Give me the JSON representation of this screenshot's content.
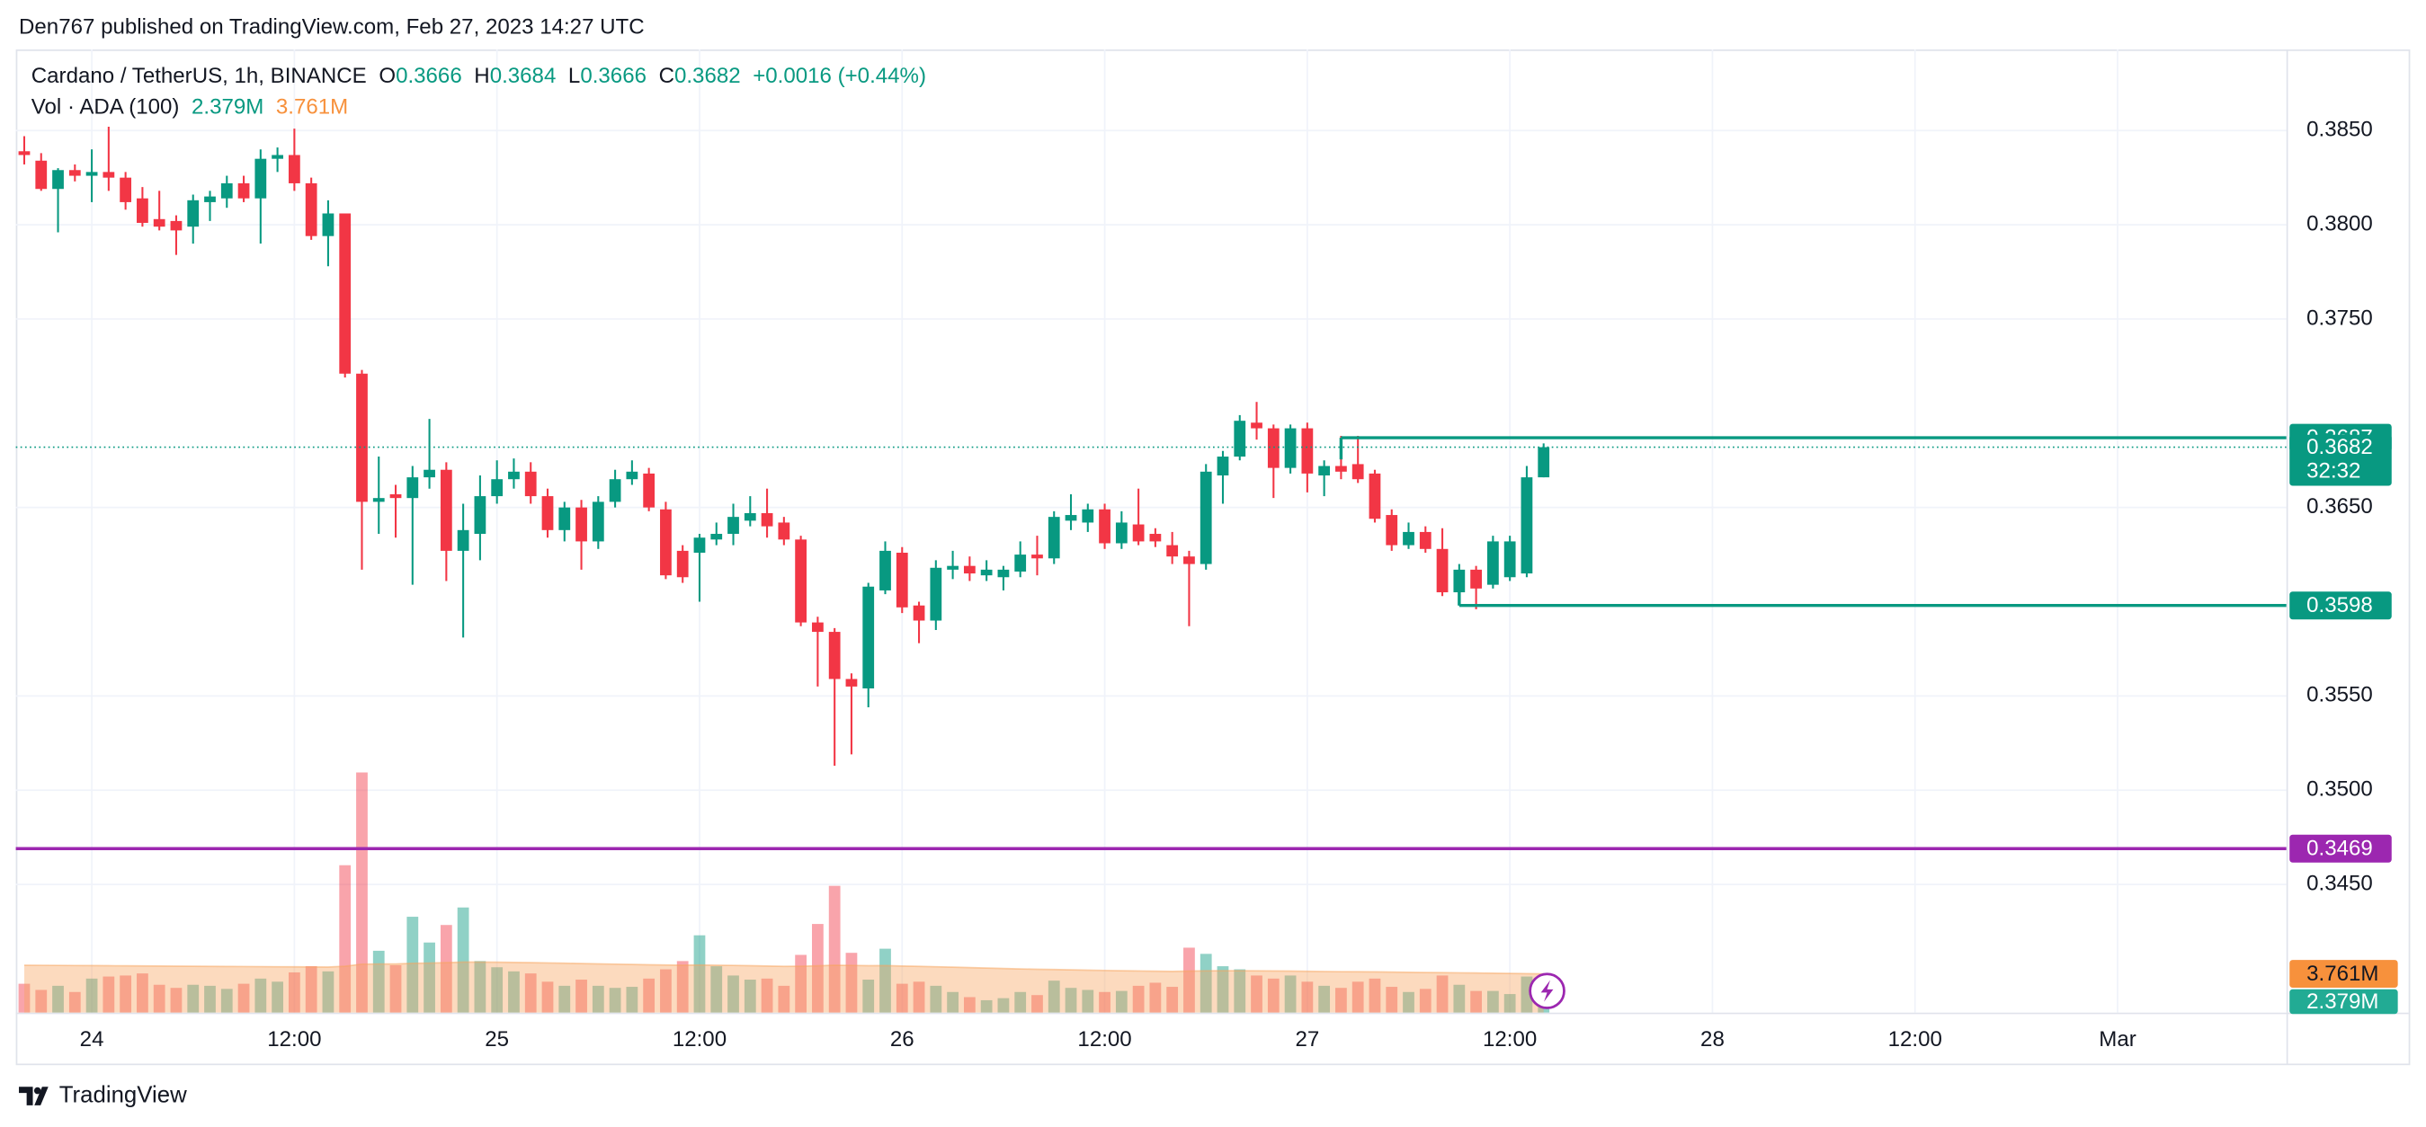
{
  "header": {
    "published": "Den767 published on TradingView.com, Feb 27, 2023 14:27 UTC",
    "brand": "TradingView"
  },
  "chart_data": {
    "type": "candlestick",
    "title": "Cardano / TetherUS, 1h, BINANCE",
    "ohlc_keys": [
      "O",
      "H",
      "L",
      "C"
    ],
    "change": "+0.0016 (+0.44%)",
    "volume_title": "Vol · ADA (100)",
    "volume_label": "2.379M",
    "volume_ma_label": "3.761M",
    "countdown": "32:32",
    "up_color": "#089981",
    "down_color": "#f23645",
    "volume_ma_color": "#f7a35c",
    "grid": true,
    "open": [
      0.3839,
      0.3834,
      0.3819,
      0.3829,
      0.3826,
      0.3828,
      0.3825,
      0.3814,
      0.3803,
      0.3802,
      0.3799,
      0.3812,
      0.3814,
      0.3822,
      0.3814,
      0.3835,
      0.3837,
      0.3822,
      0.3794,
      0.3806,
      0.3721,
      0.3653,
      0.3657,
      0.3655,
      0.3666,
      0.367,
      0.3627,
      0.3636,
      0.3656,
      0.3665,
      0.3669,
      0.3656,
      0.3638,
      0.365,
      0.3632,
      0.3653,
      0.3665,
      0.3668,
      0.3649,
      0.3627,
      0.3626,
      0.3633,
      0.3636,
      0.3643,
      0.3647,
      0.3642,
      0.3633,
      0.3589,
      0.3584,
      0.3559,
      0.3554,
      0.3606,
      0.3626,
      0.3598,
      0.359,
      0.3617,
      0.3619,
      0.3614,
      0.3613,
      0.3616,
      0.3625,
      0.3623,
      0.3643,
      0.3642,
      0.3649,
      0.3631,
      0.3641,
      0.3636,
      0.363,
      0.3624,
      0.362,
      0.3667,
      0.3677,
      0.3695,
      0.3692,
      0.3671,
      0.3692,
      0.3667,
      0.3672,
      0.3673,
      0.3668,
      0.3646,
      0.363,
      0.3637,
      0.3628,
      0.3605,
      0.3617,
      0.3609,
      0.3613,
      0.3615,
      0.3666
    ],
    "high": [
      0.3847,
      0.3838,
      0.383,
      0.3832,
      0.384,
      0.3852,
      0.3828,
      0.382,
      0.3818,
      0.3805,
      0.3816,
      0.3818,
      0.3826,
      0.3826,
      0.384,
      0.3841,
      0.3851,
      0.3825,
      0.3813,
      0.3806,
      0.3723,
      0.3677,
      0.3662,
      0.3672,
      0.3697,
      0.3674,
      0.3652,
      0.3667,
      0.3675,
      0.3676,
      0.3674,
      0.366,
      0.3653,
      0.3654,
      0.3656,
      0.367,
      0.3675,
      0.3671,
      0.3653,
      0.363,
      0.3636,
      0.3642,
      0.3652,
      0.3656,
      0.366,
      0.3645,
      0.3635,
      0.3592,
      0.3586,
      0.3562,
      0.361,
      0.3632,
      0.3629,
      0.36,
      0.3622,
      0.3627,
      0.3624,
      0.3622,
      0.3619,
      0.3632,
      0.3635,
      0.3648,
      0.3657,
      0.3652,
      0.3652,
      0.3648,
      0.366,
      0.3639,
      0.3637,
      0.3627,
      0.3673,
      0.368,
      0.3699,
      0.3706,
      0.3694,
      0.3694,
      0.3695,
      0.3675,
      0.3688,
      0.3688,
      0.367,
      0.3649,
      0.3642,
      0.364,
      0.3639,
      0.362,
      0.3619,
      0.3635,
      0.3635,
      0.3672,
      0.3684
    ],
    "low": [
      0.3832,
      0.3818,
      0.3796,
      0.3823,
      0.3812,
      0.3818,
      0.3808,
      0.3799,
      0.3797,
      0.3784,
      0.379,
      0.3802,
      0.3809,
      0.3812,
      0.379,
      0.3828,
      0.3818,
      0.3792,
      0.3778,
      0.3719,
      0.3617,
      0.3636,
      0.3634,
      0.3609,
      0.366,
      0.3611,
      0.3581,
      0.3622,
      0.3652,
      0.366,
      0.3652,
      0.3634,
      0.3632,
      0.3617,
      0.3628,
      0.365,
      0.3662,
      0.3648,
      0.3612,
      0.361,
      0.36,
      0.363,
      0.363,
      0.364,
      0.3634,
      0.363,
      0.3587,
      0.3555,
      0.3513,
      0.3519,
      0.3544,
      0.3604,
      0.3594,
      0.3578,
      0.3585,
      0.3612,
      0.3611,
      0.3611,
      0.3606,
      0.3613,
      0.3614,
      0.362,
      0.3638,
      0.3637,
      0.3628,
      0.3628,
      0.363,
      0.3629,
      0.362,
      0.3587,
      0.3617,
      0.3652,
      0.3675,
      0.3686,
      0.3655,
      0.3668,
      0.3658,
      0.3656,
      0.3665,
      0.3663,
      0.3642,
      0.3627,
      0.3628,
      0.3626,
      0.3603,
      0.3598,
      0.3596,
      0.3607,
      0.3611,
      0.3613,
      0.3666
    ],
    "close": [
      0.3837,
      0.3819,
      0.3829,
      0.3826,
      0.3828,
      0.3825,
      0.3812,
      0.3801,
      0.3799,
      0.3797,
      0.3813,
      0.3815,
      0.3822,
      0.3814,
      0.3835,
      0.3837,
      0.3822,
      0.3794,
      0.3806,
      0.3721,
      0.3653,
      0.3655,
      0.3655,
      0.3666,
      0.367,
      0.3627,
      0.3638,
      0.3656,
      0.3665,
      0.3669,
      0.3656,
      0.3638,
      0.365,
      0.3632,
      0.3653,
      0.3665,
      0.3669,
      0.365,
      0.3614,
      0.3613,
      0.3634,
      0.3636,
      0.3645,
      0.3647,
      0.364,
      0.3633,
      0.3589,
      0.3584,
      0.3559,
      0.3555,
      0.3608,
      0.3627,
      0.3597,
      0.359,
      0.3618,
      0.3619,
      0.3615,
      0.3617,
      0.3617,
      0.3625,
      0.3623,
      0.3645,
      0.3646,
      0.3649,
      0.3631,
      0.3642,
      0.3632,
      0.3632,
      0.3624,
      0.362,
      0.3669,
      0.3677,
      0.3696,
      0.3692,
      0.3671,
      0.3692,
      0.3668,
      0.3672,
      0.3669,
      0.3665,
      0.3644,
      0.363,
      0.3637,
      0.3628,
      0.3605,
      0.3617,
      0.3607,
      0.3632,
      0.3632,
      0.3666,
      0.3682
    ],
    "volume": [
      2.8,
      2.2,
      2.6,
      2.0,
      3.3,
      3.5,
      3.6,
      3.8,
      2.7,
      2.4,
      2.7,
      2.6,
      2.3,
      2.8,
      3.3,
      3.0,
      3.9,
      4.5,
      4.0,
      14.3,
      23.3,
      6.0,
      4.6,
      9.3,
      6.8,
      8.5,
      10.2,
      5.0,
      4.4,
      4.0,
      3.8,
      3.0,
      2.6,
      3.2,
      2.6,
      2.4,
      2.5,
      3.3,
      4.2,
      5.0,
      7.5,
      4.5,
      3.6,
      3.2,
      3.3,
      2.6,
      5.6,
      8.6,
      12.3,
      5.8,
      3.2,
      6.2,
      2.8,
      3.0,
      2.6,
      2.0,
      1.5,
      1.2,
      1.4,
      2.0,
      1.7,
      3.1,
      2.4,
      2.2,
      2.0,
      2.1,
      2.6,
      2.9,
      2.5,
      6.3,
      5.7,
      4.5,
      4.2,
      3.6,
      3.3,
      3.6,
      3.0,
      2.6,
      2.4,
      3.0,
      3.3,
      2.5,
      2.0,
      2.3,
      3.6,
      2.7,
      2.1,
      2.1,
      1.8,
      3.5,
      2.379
    ],
    "volume_ma": [
      4.6,
      4.59,
      4.58,
      4.57,
      4.56,
      4.55,
      4.54,
      4.53,
      4.52,
      4.51,
      4.5,
      4.49,
      4.48,
      4.47,
      4.46,
      4.45,
      4.44,
      4.43,
      4.42,
      4.5,
      4.7,
      4.72,
      4.72,
      4.78,
      4.8,
      4.85,
      4.9,
      4.9,
      4.89,
      4.87,
      4.85,
      4.82,
      4.79,
      4.76,
      4.73,
      4.7,
      4.67,
      4.64,
      4.62,
      4.6,
      4.62,
      4.6,
      4.58,
      4.55,
      4.52,
      4.49,
      4.5,
      4.54,
      4.6,
      4.58,
      4.55,
      4.56,
      4.52,
      4.49,
      4.45,
      4.41,
      4.37,
      4.32,
      4.28,
      4.24,
      4.2,
      4.18,
      4.15,
      4.12,
      4.09,
      4.06,
      4.04,
      4.02,
      4.0,
      4.03,
      4.05,
      4.06,
      4.06,
      4.05,
      4.04,
      4.03,
      4.01,
      3.99,
      3.97,
      3.96,
      3.95,
      3.93,
      3.91,
      3.89,
      3.88,
      3.86,
      3.84,
      3.82,
      3.8,
      3.78,
      3.761
    ],
    "vlim": [
      0,
      24
    ],
    "xlim": [
      -0.5,
      134
    ],
    "xticks": [
      {
        "value": 4,
        "label": "24"
      },
      {
        "value": 16,
        "label": "12:00"
      },
      {
        "value": 28,
        "label": "25"
      },
      {
        "value": 40,
        "label": "12:00"
      },
      {
        "value": 52,
        "label": "26"
      },
      {
        "value": 64,
        "label": "12:00"
      },
      {
        "value": 76,
        "label": "27"
      },
      {
        "value": 88,
        "label": "12:00"
      },
      {
        "value": 100,
        "label": "28"
      },
      {
        "value": 112,
        "label": "12:00"
      },
      {
        "value": 124,
        "label": "Mar"
      }
    ],
    "ylim": [
      0.3382,
      0.3893
    ],
    "yticks": [
      {
        "value": 0.345,
        "label": "0.3450"
      },
      {
        "value": 0.35,
        "label": "0.3500"
      },
      {
        "value": 0.355,
        "label": "0.3550"
      },
      {
        "value": 0.365,
        "label": "0.3650"
      },
      {
        "value": 0.375,
        "label": "0.3750"
      },
      {
        "value": 0.38,
        "label": "0.3800"
      },
      {
        "value": 0.385,
        "label": "0.3850"
      }
    ],
    "levels": [
      {
        "value": 0.3687,
        "color": "#089981",
        "start": 78
      },
      {
        "value": 0.3598,
        "color": "#089981",
        "start": 85
      },
      {
        "value": 0.3469,
        "color": "#9c27b0"
      }
    ]
  }
}
